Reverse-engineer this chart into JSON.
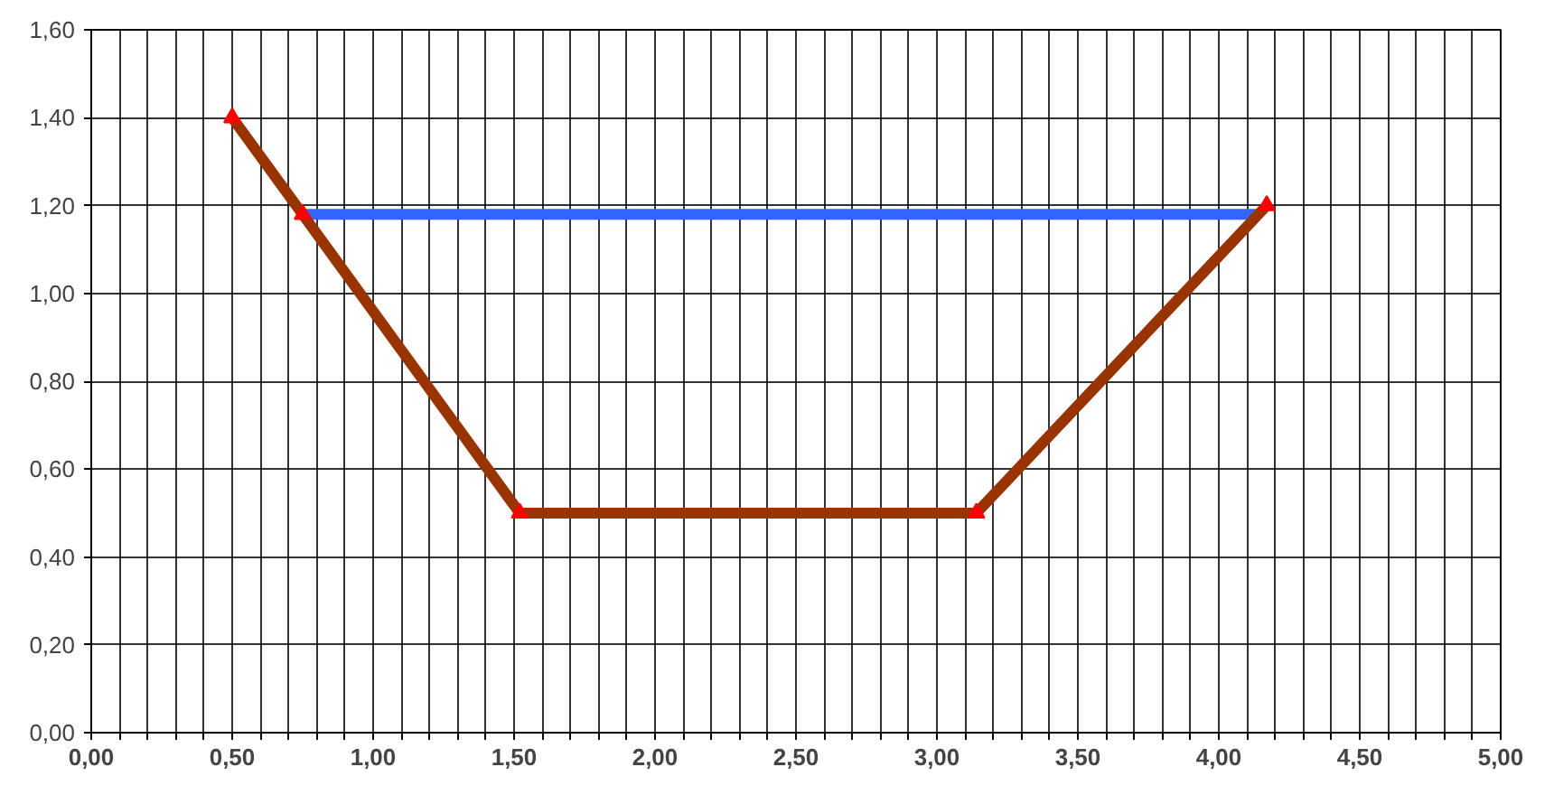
{
  "chart_data": {
    "type": "line",
    "series": [
      {
        "color": "#3366ff",
        "x": [
          0.75,
          4.13
        ],
        "values": [
          1.18,
          1.18
        ],
        "marker": "none"
      },
      {
        "color": "#993300",
        "x": [
          0.5,
          0.75,
          1.52,
          3.14,
          4.17
        ],
        "values": [
          1.4,
          1.18,
          0.5,
          0.5,
          1.2
        ],
        "marker": "none"
      },
      {
        "type": "scatter",
        "color": "#ff0000",
        "x": [
          0.5,
          0.75,
          1.52,
          3.14,
          4.17
        ],
        "values": [
          1.4,
          1.18,
          0.5,
          0.5,
          1.2
        ],
        "marker": "triangle"
      }
    ],
    "xlim": [
      0,
      5
    ],
    "ylim": [
      0,
      1.6
    ],
    "xticks": [
      {
        "value": 0,
        "label": "0,00"
      },
      {
        "value": 0.1,
        "label": null
      },
      {
        "value": 0.2,
        "label": null
      },
      {
        "value": 0.3,
        "label": null
      },
      {
        "value": 0.4,
        "label": null
      },
      {
        "value": 0.5,
        "label": "0,50"
      },
      {
        "value": 0.6,
        "label": null
      },
      {
        "value": 0.7,
        "label": null
      },
      {
        "value": 0.8,
        "label": null
      },
      {
        "value": 0.9,
        "label": null
      },
      {
        "value": 1,
        "label": "1,00"
      },
      {
        "value": 1.1,
        "label": null
      },
      {
        "value": 1.2,
        "label": null
      },
      {
        "value": 1.3,
        "label": null
      },
      {
        "value": 1.4,
        "label": null
      },
      {
        "value": 1.5,
        "label": "1,50"
      },
      {
        "value": 1.6,
        "label": null
      },
      {
        "value": 1.7,
        "label": null
      },
      {
        "value": 1.8,
        "label": null
      },
      {
        "value": 1.9,
        "label": null
      },
      {
        "value": 2,
        "label": "2,00"
      },
      {
        "value": 2.1,
        "label": null
      },
      {
        "value": 2.2,
        "label": null
      },
      {
        "value": 2.3,
        "label": null
      },
      {
        "value": 2.4,
        "label": null
      },
      {
        "value": 2.5,
        "label": "2,50"
      },
      {
        "value": 2.6,
        "label": null
      },
      {
        "value": 2.7,
        "label": null
      },
      {
        "value": 2.8,
        "label": null
      },
      {
        "value": 2.9,
        "label": null
      },
      {
        "value": 3,
        "label": "3,00"
      },
      {
        "value": 3.1,
        "label": null
      },
      {
        "value": 3.2,
        "label": null
      },
      {
        "value": 3.3,
        "label": null
      },
      {
        "value": 3.4,
        "label": null
      },
      {
        "value": 3.5,
        "label": "3,50"
      },
      {
        "value": 3.6,
        "label": null
      },
      {
        "value": 3.7,
        "label": null
      },
      {
        "value": 3.8,
        "label": null
      },
      {
        "value": 3.9,
        "label": null
      },
      {
        "value": 4,
        "label": "4,00"
      },
      {
        "value": 4.1,
        "label": null
      },
      {
        "value": 4.2,
        "label": null
      },
      {
        "value": 4.3,
        "label": null
      },
      {
        "value": 4.4,
        "label": null
      },
      {
        "value": 4.5,
        "label": "4,50"
      },
      {
        "value": 4.6,
        "label": null
      },
      {
        "value": 4.7,
        "label": null
      },
      {
        "value": 4.8,
        "label": null
      },
      {
        "value": 4.9,
        "label": null
      },
      {
        "value": 5,
        "label": "5,00"
      }
    ],
    "yticks": [
      {
        "value": 0,
        "label": "0,00"
      },
      {
        "value": 0.2,
        "label": "0,20"
      },
      {
        "value": 0.4,
        "label": "0,40"
      },
      {
        "value": 0.6,
        "label": "0,60"
      },
      {
        "value": 0.8,
        "label": "0,80"
      },
      {
        "value": 1,
        "label": "1,00"
      },
      {
        "value": 1.2,
        "label": "1,20"
      },
      {
        "value": 1.4,
        "label": "1,40"
      },
      {
        "value": 1.6,
        "label": "1,60"
      }
    ],
    "grid": true
  }
}
